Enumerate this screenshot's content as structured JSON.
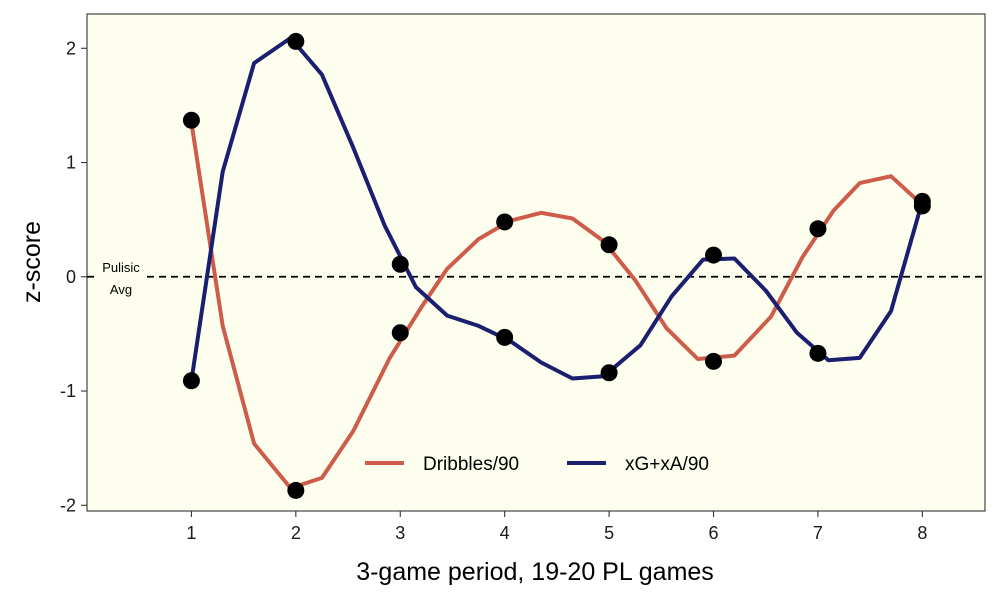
{
  "chart_data": {
    "type": "line",
    "title": "",
    "xlabel": "3-game period, 19-20 PL games",
    "ylabel": "z-score",
    "xlim": [
      0,
      8.6
    ],
    "ylim": [
      -2.05,
      2.3
    ],
    "x_ticks": [
      1,
      2,
      3,
      4,
      5,
      6,
      7,
      8
    ],
    "y_ticks": [
      -2,
      -1,
      0,
      1,
      2
    ],
    "grid": false,
    "background": "#fefeee",
    "reference_line": {
      "y": 0,
      "style": "dashed",
      "label_line1": "Pulisic",
      "label_line2": "Avg"
    },
    "legend": {
      "placement": "bottom-center"
    },
    "series": [
      {
        "name": "Dribbles/90",
        "color": "#cd5c4a",
        "points": [
          {
            "x": 1,
            "y": 1.37
          },
          {
            "x": 2,
            "y": -1.87
          },
          {
            "x": 3,
            "y": -0.49
          },
          {
            "x": 4,
            "y": 0.48
          },
          {
            "x": 5,
            "y": 0.28
          },
          {
            "x": 6,
            "y": -0.74
          },
          {
            "x": 7,
            "y": 0.42
          },
          {
            "x": 8,
            "y": 0.62
          }
        ],
        "curve": [
          {
            "x": 1,
            "y": 1.35
          },
          {
            "x": 1.3,
            "y": -0.43
          },
          {
            "x": 1.6,
            "y": -1.46
          },
          {
            "x": 1.95,
            "y": -1.85
          },
          {
            "x": 2.25,
            "y": -1.76
          },
          {
            "x": 2.55,
            "y": -1.35
          },
          {
            "x": 2.9,
            "y": -0.71
          },
          {
            "x": 3.2,
            "y": -0.27
          },
          {
            "x": 3.45,
            "y": 0.07
          },
          {
            "x": 3.75,
            "y": 0.33
          },
          {
            "x": 4.05,
            "y": 0.49
          },
          {
            "x": 4.35,
            "y": 0.56
          },
          {
            "x": 4.65,
            "y": 0.51
          },
          {
            "x": 4.95,
            "y": 0.31
          },
          {
            "x": 5.25,
            "y": -0.03
          },
          {
            "x": 5.55,
            "y": -0.45
          },
          {
            "x": 5.85,
            "y": -0.72
          },
          {
            "x": 6.2,
            "y": -0.69
          },
          {
            "x": 6.55,
            "y": -0.35
          },
          {
            "x": 6.85,
            "y": 0.17
          },
          {
            "x": 7.15,
            "y": 0.58
          },
          {
            "x": 7.4,
            "y": 0.82
          },
          {
            "x": 7.7,
            "y": 0.88
          },
          {
            "x": 8,
            "y": 0.63
          }
        ]
      },
      {
        "name": "xG+xA/90",
        "color": "#1b1f70",
        "points": [
          {
            "x": 1,
            "y": -0.91
          },
          {
            "x": 2,
            "y": 2.06
          },
          {
            "x": 3,
            "y": 0.11
          },
          {
            "x": 4,
            "y": -0.53
          },
          {
            "x": 5,
            "y": -0.84
          },
          {
            "x": 6,
            "y": 0.19
          },
          {
            "x": 7,
            "y": -0.67
          },
          {
            "x": 8,
            "y": 0.66
          }
        ],
        "curve": [
          {
            "x": 1,
            "y": -0.91
          },
          {
            "x": 1.3,
            "y": 0.92
          },
          {
            "x": 1.6,
            "y": 1.87
          },
          {
            "x": 1.95,
            "y": 2.09
          },
          {
            "x": 2.25,
            "y": 1.77
          },
          {
            "x": 2.55,
            "y": 1.13
          },
          {
            "x": 2.85,
            "y": 0.45
          },
          {
            "x": 3.15,
            "y": -0.09
          },
          {
            "x": 3.45,
            "y": -0.34
          },
          {
            "x": 3.75,
            "y": -0.43
          },
          {
            "x": 4.05,
            "y": -0.56
          },
          {
            "x": 4.35,
            "y": -0.75
          },
          {
            "x": 4.65,
            "y": -0.89
          },
          {
            "x": 4.95,
            "y": -0.87
          },
          {
            "x": 5.3,
            "y": -0.6
          },
          {
            "x": 5.6,
            "y": -0.17
          },
          {
            "x": 5.9,
            "y": 0.15
          },
          {
            "x": 6.2,
            "y": 0.16
          },
          {
            "x": 6.5,
            "y": -0.12
          },
          {
            "x": 6.8,
            "y": -0.49
          },
          {
            "x": 7.1,
            "y": -0.73
          },
          {
            "x": 7.4,
            "y": -0.71
          },
          {
            "x": 7.7,
            "y": -0.3
          },
          {
            "x": 8,
            "y": 0.66
          }
        ]
      }
    ]
  }
}
